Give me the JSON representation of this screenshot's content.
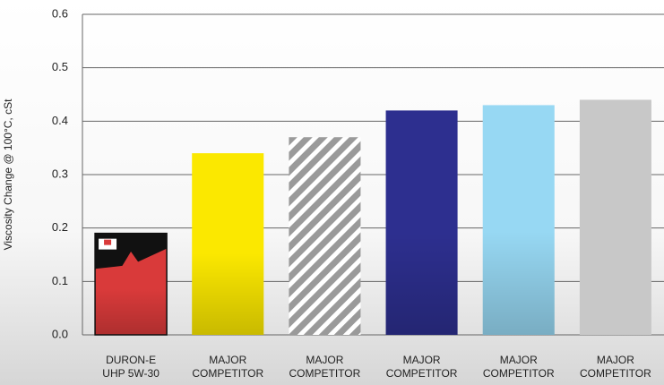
{
  "chart_data": {
    "type": "bar",
    "y_label": "Viscosity Change @ 100°C, cSt",
    "categories": [
      [
        "DURON-E",
        "UHP 5W-30"
      ],
      [
        "MAJOR",
        "COMPETITOR"
      ],
      [
        "MAJOR",
        "COMPETITOR"
      ],
      [
        "MAJOR",
        "COMPETITOR"
      ],
      [
        "MAJOR",
        "COMPETITOR"
      ],
      [
        "MAJOR",
        "COMPETITOR"
      ]
    ],
    "values": [
      0.19,
      0.34,
      0.37,
      0.42,
      0.43,
      0.44
    ],
    "colors": [
      "#d93a3a",
      "#fbe800",
      "#9a9a9a",
      "#2d2f8f",
      "#97d8f3",
      "#c8c8c8"
    ],
    "ylim": [
      0,
      0.6
    ],
    "yticks": [
      {
        "value": 0,
        "label": "0.0"
      },
      0.1,
      0.2,
      0.3,
      0.4,
      0.5,
      0.6
    ],
    "grid": true
  }
}
